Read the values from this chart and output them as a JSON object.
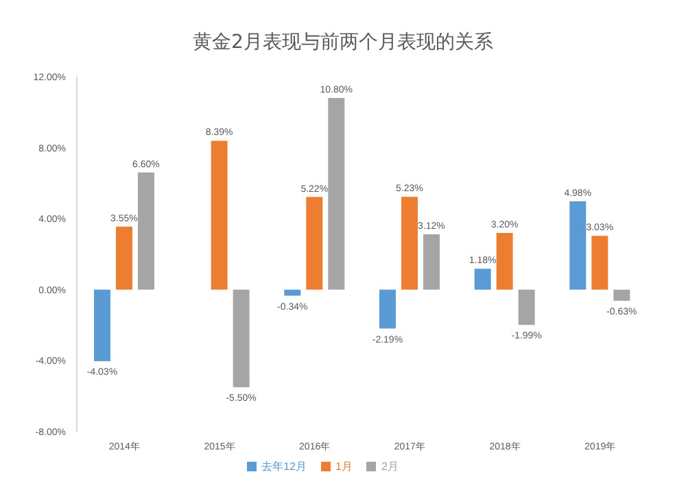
{
  "chart_data": {
    "type": "bar",
    "title": "黄金2月表现与前两个月表现的关系",
    "categories": [
      "2014年",
      "2015年",
      "2016年",
      "2017年",
      "2018年",
      "2019年"
    ],
    "series": [
      {
        "name": "去年12月",
        "color": "#5b9bd5",
        "values": [
          -4.03,
          null,
          -0.34,
          -2.19,
          1.18,
          4.98
        ],
        "value_labels": [
          "-4.03%",
          null,
          "-0.34%",
          "-2.19%",
          "1.18%",
          "4.98%"
        ]
      },
      {
        "name": "1月",
        "color": "#ed7d31",
        "values": [
          3.55,
          8.39,
          5.22,
          5.23,
          3.2,
          3.03
        ],
        "value_labels": [
          "3.55%",
          "8.39%",
          "5.22%",
          "5.23%",
          "3.20%",
          "3.03%"
        ]
      },
      {
        "name": "2月",
        "color": "#a5a5a5",
        "values": [
          6.6,
          -5.5,
          10.8,
          3.12,
          -1.99,
          -0.63
        ],
        "value_labels": [
          "6.60%",
          "-5.50%",
          "10.80%",
          "3.12%",
          "-1.99%",
          "-0.63%"
        ]
      }
    ],
    "ylim": [
      -8,
      12
    ],
    "yticks": [
      {
        "value": -8,
        "label": "-8.00%"
      },
      {
        "value": -4,
        "label": "-4.00%"
      },
      {
        "value": 0,
        "label": "0.00%"
      },
      {
        "value": 4,
        "label": "4.00%"
      },
      {
        "value": 8,
        "label": "8.00%"
      },
      {
        "value": 12,
        "label": "12.00%"
      }
    ],
    "legend": "bottom"
  }
}
